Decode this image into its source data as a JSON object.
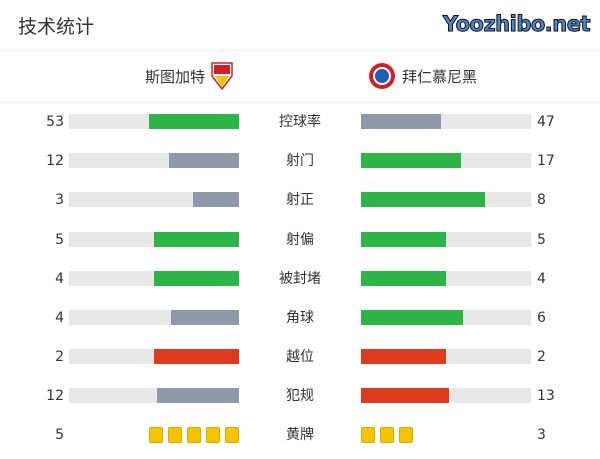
{
  "title": "技术统计",
  "home": {
    "name": "斯图加特",
    "logo": "vfb-stuttgart-crest"
  },
  "away": {
    "name": "拜仁慕尼黑",
    "logo": "bayern-munich-crest"
  },
  "colors": {
    "green": "#2db447",
    "gray": "#8e98a8",
    "red": "#e03a1e",
    "card": "#f5c400"
  },
  "stats": [
    {
      "label": "控球率",
      "home": "53",
      "away": "47",
      "home_fill": 0.53,
      "away_fill": 0.47,
      "home_color": "green",
      "away_color": "gray"
    },
    {
      "label": "射门",
      "home": "12",
      "away": "17",
      "home_fill": 0.41,
      "away_fill": 0.59,
      "home_color": "gray",
      "away_color": "green"
    },
    {
      "label": "射正",
      "home": "3",
      "away": "8",
      "home_fill": 0.27,
      "away_fill": 0.73,
      "home_color": "gray",
      "away_color": "green"
    },
    {
      "label": "射偏",
      "home": "5",
      "away": "5",
      "home_fill": 0.5,
      "away_fill": 0.5,
      "home_color": "green",
      "away_color": "green"
    },
    {
      "label": "被封堵",
      "home": "4",
      "away": "4",
      "home_fill": 0.5,
      "away_fill": 0.5,
      "home_color": "green",
      "away_color": "green"
    },
    {
      "label": "角球",
      "home": "4",
      "away": "6",
      "home_fill": 0.4,
      "away_fill": 0.6,
      "home_color": "gray",
      "away_color": "green"
    },
    {
      "label": "越位",
      "home": "2",
      "away": "2",
      "home_fill": 0.5,
      "away_fill": 0.5,
      "home_color": "red",
      "away_color": "red"
    },
    {
      "label": "犯规",
      "home": "12",
      "away": "13",
      "home_fill": 0.48,
      "away_fill": 0.52,
      "home_color": "gray",
      "away_color": "red"
    }
  ],
  "yellow": {
    "label": "黄牌",
    "home": "5",
    "away": "3",
    "home_count": 5,
    "away_count": 3
  },
  "watermark": "Yoozhibo.net"
}
